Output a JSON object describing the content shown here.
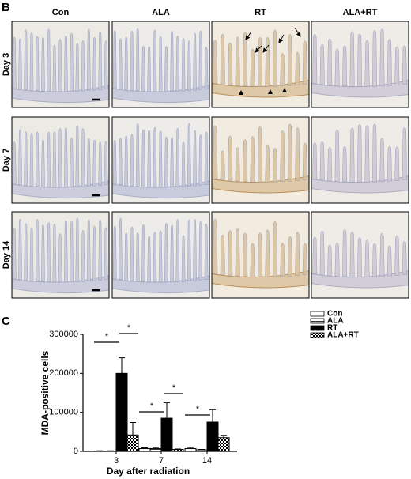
{
  "panel_b": {
    "label": "B",
    "columns": [
      "Con",
      "ALA",
      "RT",
      "ALA+RT"
    ],
    "rows": [
      "Day 3",
      "Day 7",
      "Day 14"
    ]
  },
  "chart_data": {
    "type": "bar",
    "panel_label": "C",
    "x_label": "Day after radiation",
    "y_label": "MDA-positive cells",
    "categories": [
      "3",
      "7",
      "14"
    ],
    "series": [
      {
        "name": "Con",
        "color": "#ffffff",
        "pattern": "none",
        "values": [
          1000,
          7000,
          7000
        ],
        "errors": [
          500,
          2000,
          3000
        ]
      },
      {
        "name": "ALA",
        "color": "#ffffff",
        "pattern": "hlines",
        "values": [
          1000,
          7000,
          4000
        ],
        "errors": [
          500,
          3000,
          1000
        ]
      },
      {
        "name": "RT",
        "color": "#000000",
        "pattern": "none",
        "values": [
          200000,
          85000,
          75000
        ],
        "errors": [
          40000,
          40000,
          32000
        ]
      },
      {
        "name": "ALA+RT",
        "color": "#ffffff",
        "pattern": "checker",
        "values": [
          42000,
          5000,
          35000
        ],
        "errors": [
          32000,
          1000,
          6000
        ]
      }
    ],
    "ylim": [
      0,
      300000
    ],
    "yticks": [
      0,
      100000,
      200000,
      300000
    ],
    "significance": [
      "*",
      "*",
      "*",
      "*",
      "*"
    ]
  }
}
